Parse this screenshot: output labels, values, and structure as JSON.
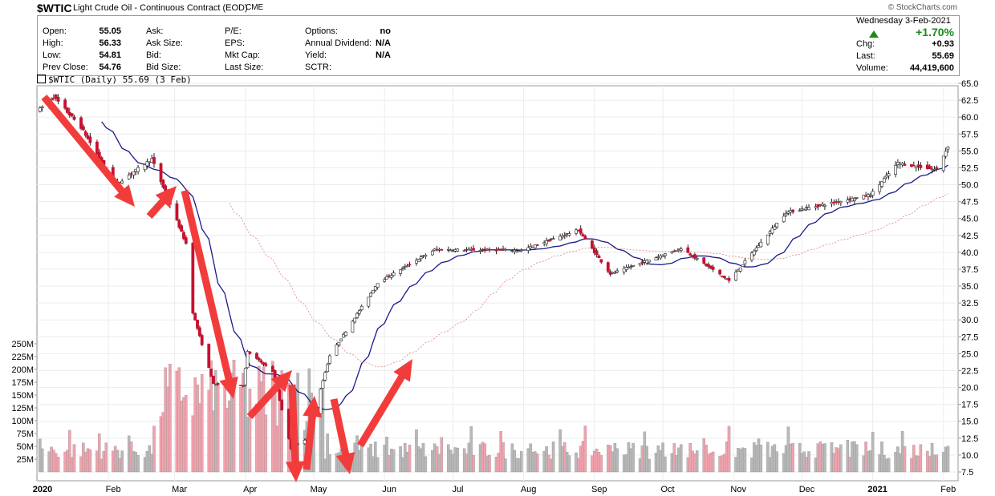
{
  "header": {
    "symbol": "$WTIC",
    "name": "Light Crude Oil - Continuous Contract (EOD)",
    "exchange": "CME",
    "source": "© StockCharts.com"
  },
  "quote": {
    "open_label": "Open:",
    "open": "55.05",
    "high_label": "High:",
    "high": "56.33",
    "low_label": "Low:",
    "low": "54.81",
    "prev_label": "Prev Close:",
    "prev": "54.76",
    "ask_label": "Ask:",
    "ask_size_label": "Ask Size:",
    "bid_label": "Bid:",
    "bid_size_label": "Bid Size:",
    "pe_label": "P/E:",
    "eps_label": "EPS:",
    "mktcap_label": "Mkt Cap:",
    "lastsize_label": "Last Size:",
    "options_label": "Options:",
    "options": "no",
    "div_label": "Annual Dividend:",
    "div": "N/A",
    "yield_label": "Yield:",
    "yield": "N/A",
    "sctr_label": "SCTR:",
    "date": "Wednesday   3-Feb-2021",
    "pct": "+1.70%",
    "chg_label": "Chg:",
    "chg": "+0.93",
    "last_label": "Last:",
    "last": "55.69",
    "vol_label": "Volume:",
    "vol": "44,419,600"
  },
  "legend": "$WTIC (Daily) 55.69 (3 Feb)",
  "colors": {
    "up": "#ffffff",
    "down": "#c8102e",
    "ma_fast": "#1a1a8c",
    "ma_slow": "#e08080",
    "volume_up": "#b8b8b8",
    "volume_down": "#f0a3ae",
    "arrows": "#f23c3c"
  },
  "chart_data": {
    "type": "candlestick",
    "period": "Daily",
    "x_ticks": [
      "2020",
      "Feb",
      "Mar",
      "Apr",
      "May",
      "Jun",
      "Jul",
      "Aug",
      "Sep",
      "Oct",
      "Nov",
      "Dec",
      "2021",
      "Feb"
    ],
    "y_ticks": [
      "65.0",
      "62.5",
      "60.0",
      "57.5",
      "55.0",
      "52.5",
      "50.0",
      "47.5",
      "45.0",
      "42.5",
      "40.0",
      "37.5",
      "35.0",
      "32.5",
      "30.0",
      "27.5",
      "25.0",
      "22.5",
      "20.0",
      "17.5",
      "15.0",
      "12.5",
      "10.0",
      "7.5"
    ],
    "ylim": [
      7.5,
      65.0
    ],
    "volume_ticks": [
      "250M",
      "225M",
      "200M",
      "175M",
      "150M",
      "125M",
      "100M",
      "75M",
      "50M",
      "25M"
    ],
    "price_anchors": [
      {
        "date": "2020-01-02",
        "close": 61.2
      },
      {
        "date": "2020-01-08",
        "close": 63.0
      },
      {
        "date": "2020-01-20",
        "close": 58.5
      },
      {
        "date": "2020-02-04",
        "close": 50.0
      },
      {
        "date": "2020-02-20",
        "close": 53.8
      },
      {
        "date": "2020-03-06",
        "close": 41.3
      },
      {
        "date": "2020-03-09",
        "close": 31.1
      },
      {
        "date": "2020-03-18",
        "close": 20.5
      },
      {
        "date": "2020-03-31",
        "close": 20.3
      },
      {
        "date": "2020-04-02",
        "close": 25.3
      },
      {
        "date": "2020-04-13",
        "close": 22.4
      },
      {
        "date": "2020-04-21",
        "close": 11.0
      },
      {
        "date": "2020-04-28",
        "close": 12.5
      },
      {
        "date": "2020-05-08",
        "close": 24.7
      },
      {
        "date": "2020-05-29",
        "close": 35.5
      },
      {
        "date": "2020-06-23",
        "close": 40.4
      },
      {
        "date": "2020-07-31",
        "close": 40.3
      },
      {
        "date": "2020-08-25",
        "close": 43.3
      },
      {
        "date": "2020-09-08",
        "close": 36.8
      },
      {
        "date": "2020-10-09",
        "close": 40.6
      },
      {
        "date": "2020-10-30",
        "close": 35.8
      },
      {
        "date": "2020-11-24",
        "close": 45.9
      },
      {
        "date": "2020-12-31",
        "close": 48.5
      },
      {
        "date": "2021-01-12",
        "close": 53.2
      },
      {
        "date": "2021-01-29",
        "close": 52.2
      },
      {
        "date": "2021-02-03",
        "close": 55.7
      }
    ]
  }
}
